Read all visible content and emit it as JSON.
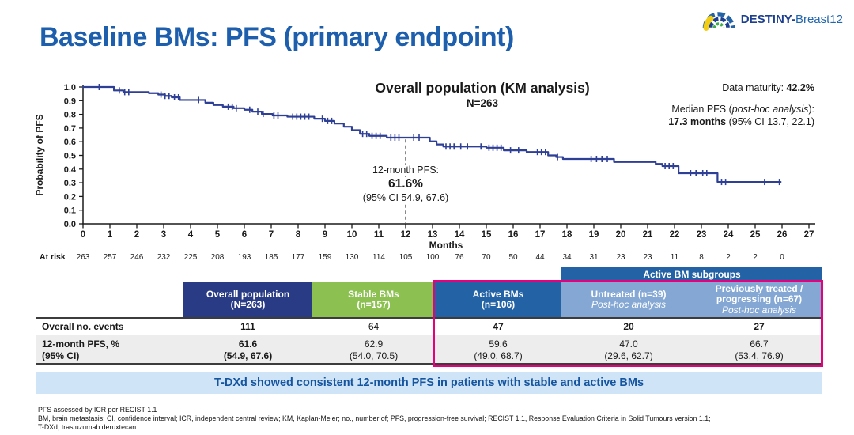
{
  "slide": {
    "title": "Baseline BMs: PFS (primary endpoint)",
    "logo": {
      "bold": "DESTINY-",
      "regular": "Breast12"
    },
    "banner": "T-DXd showed consistent 12-month PFS in patients with stable and active BMs",
    "footnotes": [
      "PFS assessed by ICR per RECIST 1.1",
      "BM, brain metastasis; CI, confidence interval; ICR, independent central review; KM, Kaplan-Meier; no., number of; PFS, progression-free survival; RECIST 1.1, Response Evaluation Criteria in Solid Tumours version 1.1;",
      "T-DXd, trastuzumab deruxtecan"
    ]
  },
  "chart": {
    "title": "Overall population (KM analysis)",
    "subtitle": "N=263",
    "ylabel": "Probability of PFS",
    "xlabel": "Months",
    "at_risk_label": "At risk",
    "stats": {
      "maturity_prefix": "Data maturity: ",
      "maturity_value": "42.2%",
      "median_prefix": "Median PFS (",
      "median_italic": "post-hoc analysis",
      "median_suffix": "):",
      "median_value": "17.3 months",
      "median_ci": " (95% CI 13.7, 22.1)"
    },
    "annotation": {
      "line1": "12-month PFS:",
      "line2": "61.6%",
      "line3": "(95% CI 54.9, 67.6)"
    }
  },
  "chart_data": {
    "type": "line",
    "subtype": "kaplan-meier-step",
    "title": "Overall population (KM analysis)",
    "subtitle": "N=263",
    "xlabel": "Months",
    "ylabel": "Probability of PFS",
    "xlim": [
      0,
      27
    ],
    "ylim": [
      0.0,
      1.0
    ],
    "x_ticks": [
      0,
      1,
      2,
      3,
      4,
      5,
      6,
      7,
      8,
      9,
      10,
      11,
      12,
      13,
      14,
      15,
      16,
      17,
      18,
      19,
      20,
      21,
      22,
      23,
      24,
      25,
      26,
      27
    ],
    "y_ticks": [
      0.0,
      0.1,
      0.2,
      0.3,
      0.4,
      0.5,
      0.6,
      0.7,
      0.8,
      0.9,
      1.0
    ],
    "grid": false,
    "legend": "none",
    "reference_line_month": 12,
    "series": [
      {
        "name": "Overall population (N=263)",
        "color": "#2e3f96",
        "steps": [
          [
            0,
            1.0
          ],
          [
            1.15,
            0.975
          ],
          [
            1.5,
            0.963
          ],
          [
            2.45,
            0.955
          ],
          [
            2.8,
            0.945
          ],
          [
            3.05,
            0.935
          ],
          [
            3.3,
            0.925
          ],
          [
            3.6,
            0.905
          ],
          [
            4.55,
            0.885
          ],
          [
            4.85,
            0.868
          ],
          [
            5.2,
            0.856
          ],
          [
            5.6,
            0.845
          ],
          [
            6.0,
            0.834
          ],
          [
            6.3,
            0.82
          ],
          [
            6.65,
            0.803
          ],
          [
            7.05,
            0.792
          ],
          [
            7.6,
            0.783
          ],
          [
            8.6,
            0.768
          ],
          [
            9.0,
            0.752
          ],
          [
            9.35,
            0.733
          ],
          [
            9.7,
            0.71
          ],
          [
            10.0,
            0.685
          ],
          [
            10.3,
            0.658
          ],
          [
            10.65,
            0.643
          ],
          [
            11.3,
            0.63
          ],
          [
            12.9,
            0.603
          ],
          [
            13.15,
            0.58
          ],
          [
            13.4,
            0.565
          ],
          [
            15.0,
            0.556
          ],
          [
            15.65,
            0.537
          ],
          [
            16.5,
            0.525
          ],
          [
            17.3,
            0.5
          ],
          [
            17.6,
            0.488
          ],
          [
            17.85,
            0.474
          ],
          [
            19.75,
            0.452
          ],
          [
            21.3,
            0.438
          ],
          [
            21.55,
            0.422
          ],
          [
            22.15,
            0.37
          ],
          [
            23.6,
            0.306
          ]
        ],
        "end_month": 25.95,
        "censor_months": [
          0.6,
          1.35,
          1.55,
          1.7,
          2.9,
          3.05,
          3.2,
          3.4,
          3.55,
          4.3,
          5.4,
          5.55,
          5.7,
          6.2,
          6.5,
          6.7,
          7.1,
          7.25,
          7.8,
          7.95,
          8.1,
          8.25,
          8.4,
          8.9,
          9.1,
          9.25,
          10.4,
          10.55,
          10.75,
          10.9,
          11.05,
          11.45,
          11.6,
          11.75,
          12.3,
          12.5,
          13.5,
          13.65,
          13.8,
          14.05,
          14.3,
          14.8,
          15.1,
          15.25,
          15.4,
          15.55,
          15.9,
          16.2,
          16.9,
          17.05,
          17.2,
          17.65,
          18.9,
          19.1,
          19.3,
          19.5,
          21.65,
          21.8,
          21.95,
          22.6,
          22.8,
          23.05,
          23.2,
          23.75,
          23.9,
          25.35,
          25.9
        ]
      }
    ],
    "at_risk": {
      "label": "At risk",
      "months": [
        0,
        1,
        2,
        3,
        4,
        5,
        6,
        7,
        8,
        9,
        10,
        11,
        12,
        13,
        14,
        15,
        16,
        17,
        18,
        19,
        20,
        21,
        22,
        23,
        24,
        25,
        26
      ],
      "counts": [
        263,
        257,
        246,
        232,
        225,
        208,
        193,
        185,
        177,
        159,
        130,
        114,
        105,
        100,
        76,
        70,
        50,
        44,
        34,
        31,
        23,
        23,
        11,
        8,
        2,
        2,
        0
      ]
    },
    "annotations": [
      {
        "text": "12-month PFS: 61.6% (95% CI 54.9, 67.6)",
        "at_month": 12
      },
      {
        "text": "Data maturity: 42.2%"
      },
      {
        "text": "Median PFS (post-hoc analysis): 17.3 months (95% CI 13.7, 22.1)"
      }
    ],
    "stats": {
      "data_maturity_pct": 42.2,
      "median_pfs_months": 17.3,
      "median_pfs_ci": [
        13.7,
        22.1
      ],
      "pfs_12mo_pct": 61.6,
      "pfs_12mo_ci": [
        54.9,
        67.6
      ]
    }
  },
  "table": {
    "band": "Active BM subgroups",
    "columns": [
      {
        "line1": "Overall population",
        "line2": "(N=263)"
      },
      {
        "line1": "Stable BMs",
        "line2": "(n=157)"
      },
      {
        "line1": "Active BMs",
        "line2": "(n=106)"
      },
      {
        "line1": "Untreated (n=39)",
        "italic": "Post-hoc analysis"
      },
      {
        "line1": "Previously treated /",
        "line2": "progressing (n=67)",
        "italic": "Post-hoc analysis"
      }
    ],
    "rows": [
      {
        "label1": "Overall no. events",
        "values": [
          "111",
          "64",
          "47",
          "20",
          "27"
        ]
      },
      {
        "label1": "12-month PFS, %",
        "label2": "(95% CI)",
        "values2": [
          {
            "v": "61.6",
            "ci": "(54.9, 67.6)"
          },
          {
            "v": "62.9",
            "ci": "(54.0, 70.5)"
          },
          {
            "v": "59.6",
            "ci": "(49.0, 68.7)"
          },
          {
            "v": "47.0",
            "ci": "(29.6, 62.7)"
          },
          {
            "v": "66.7",
            "ci": "(53.4, 76.9)"
          }
        ]
      }
    ]
  },
  "colors": {
    "title_blue": "#1d5fad",
    "curve_navy": "#2e3f96",
    "table_navy": "#2a3b85",
    "table_green": "#8cc152",
    "table_blue": "#2262a5",
    "table_lightblue": "#84a7d3",
    "highlight_magenta": "#e5007e",
    "row_gray": "#ededed",
    "banner_bg": "#cfe4f6",
    "banner_text": "#15549e"
  }
}
